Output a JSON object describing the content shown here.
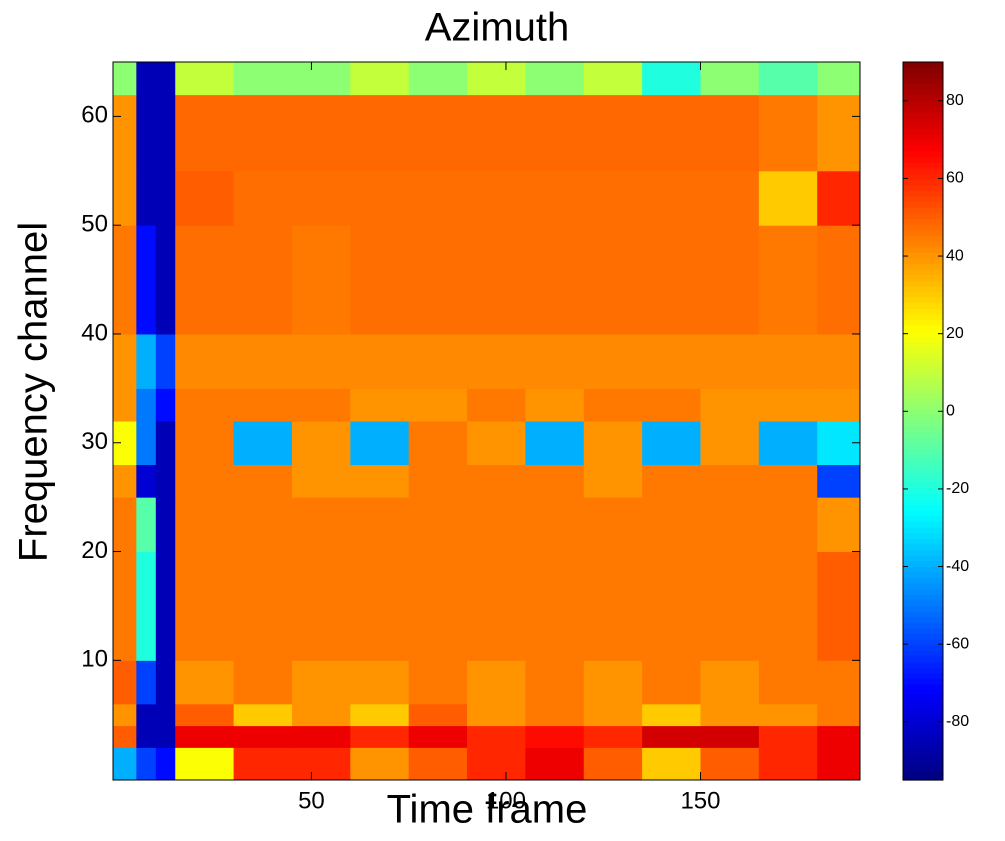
{
  "chart_data": {
    "type": "heatmap",
    "title": "Azimuth",
    "x_label": "Time frame",
    "y_label": "Frequency channel",
    "colormap": "jet",
    "xlim": [
      -1,
      191
    ],
    "ylim": [
      -1,
      65
    ],
    "clim": [
      -95,
      90
    ],
    "xticks": [
      50,
      100,
      150
    ],
    "yticks": [
      10,
      20,
      30,
      40,
      50,
      60
    ],
    "cticks": [
      -80,
      -60,
      -40,
      -20,
      0,
      20,
      40,
      60,
      80
    ],
    "x_edges": [
      -1,
      5,
      10,
      15,
      30,
      45,
      60,
      75,
      90,
      105,
      120,
      135,
      150,
      165,
      180,
      191
    ],
    "y_edges": [
      -1,
      2,
      4,
      6,
      10,
      20,
      25,
      28,
      32,
      35,
      40,
      50,
      55,
      62,
      65
    ],
    "z": [
      [
        -40,
        -60,
        -70,
        20,
        60,
        60,
        40,
        50,
        60,
        70,
        50,
        30,
        50,
        60,
        70
      ],
      [
        50,
        -85,
        -85,
        70,
        70,
        70,
        60,
        70,
        60,
        65,
        60,
        75,
        75,
        60,
        70
      ],
      [
        40,
        -85,
        -85,
        50,
        30,
        40,
        30,
        50,
        40,
        45,
        40,
        30,
        40,
        40,
        45
      ],
      [
        50,
        -60,
        -85,
        40,
        45,
        40,
        40,
        45,
        40,
        45,
        40,
        45,
        40,
        45,
        45
      ],
      [
        45,
        -20,
        -85,
        45,
        45,
        45,
        45,
        45,
        45,
        45,
        45,
        45,
        45,
        45,
        50
      ],
      [
        45,
        -10,
        -85,
        45,
        45,
        45,
        45,
        45,
        45,
        45,
        45,
        45,
        45,
        45,
        40
      ],
      [
        40,
        -80,
        -85,
        45,
        45,
        40,
        40,
        45,
        45,
        45,
        40,
        45,
        45,
        45,
        -60
      ],
      [
        20,
        -50,
        -85,
        45,
        -40,
        40,
        -40,
        45,
        40,
        -40,
        40,
        -40,
        40,
        -40,
        -30
      ],
      [
        40,
        -50,
        -70,
        45,
        45,
        45,
        40,
        40,
        45,
        40,
        45,
        45,
        40,
        40,
        40
      ],
      [
        40,
        -40,
        -60,
        42,
        42,
        42,
        42,
        42,
        42,
        42,
        42,
        42,
        42,
        42,
        42
      ],
      [
        45,
        -70,
        -85,
        47,
        47,
        45,
        47,
        47,
        47,
        47,
        47,
        47,
        47,
        45,
        47
      ],
      [
        40,
        -85,
        -85,
        50,
        47,
        47,
        47,
        47,
        47,
        47,
        47,
        47,
        47,
        30,
        60
      ],
      [
        40,
        -85,
        -85,
        48,
        48,
        48,
        48,
        48,
        48,
        48,
        48,
        48,
        48,
        45,
        40
      ],
      [
        0,
        -85,
        -85,
        10,
        0,
        0,
        10,
        0,
        10,
        0,
        10,
        -20,
        0,
        -10,
        0
      ]
    ]
  }
}
